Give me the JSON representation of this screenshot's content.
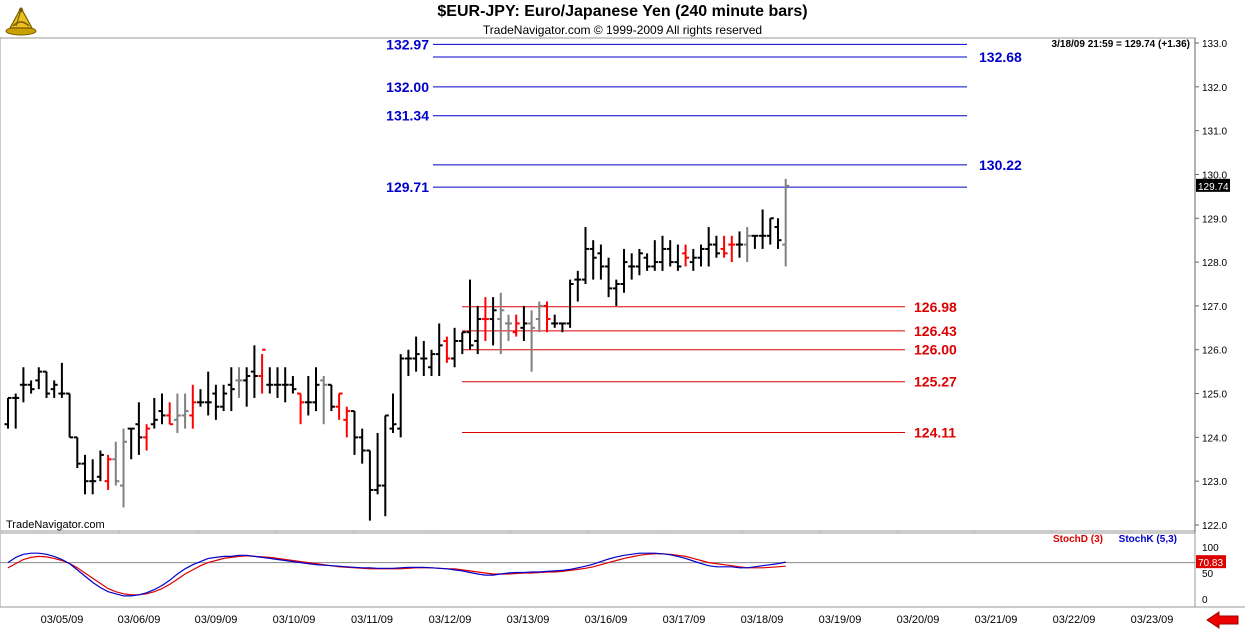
{
  "chart_title": "$EUR-JPY:  Euro/Japanese Yen  (240 minute bars)",
  "chart_subtitle": "TradeNavigator.com © 1999-2009 All rights reserved",
  "watermark": "TradeNavigator.com",
  "last_quote": "3/18/09 21:59 = 129.74 (+1.36)",
  "last_price_tag": "129.74",
  "stoch_last_tag": "70.83",
  "icons": {
    "logo": "sextant-logo-icon",
    "navigation": "red-left-arrow-icon"
  },
  "colors": {
    "up_bar": "#000000",
    "down_bar": "#ff0000",
    "gray_bar": "#808080",
    "resistance": "#0000cc",
    "support": "#dd0000",
    "stoch_d": "#dd0000",
    "stoch_k": "#0000cc"
  },
  "chart_data": [
    {
      "type": "ohlc",
      "title": "$EUR-JPY:  Euro/Japanese Yen  (240 minute bars)",
      "ylim": [
        122,
        133
      ],
      "y_ticks": [
        "133.0",
        "132.0",
        "131.0",
        "130.0",
        "129.0",
        "128.0",
        "127.0",
        "126.0",
        "125.0",
        "124.0",
        "123.0",
        "122.0"
      ],
      "x_ticks": [
        "03/05/09",
        "03/06/09",
        "03/09/09",
        "03/10/09",
        "03/11/09",
        "03/12/09",
        "03/13/09",
        "03/16/09",
        "03/17/09",
        "03/18/09",
        "03/19/09",
        "03/20/09",
        "03/21/09",
        "03/22/09",
        "03/23/09"
      ],
      "bars": [
        [
          124.3,
          124.9,
          124.2,
          124.9,
          "k"
        ],
        [
          124.9,
          125.0,
          124.2,
          124.9,
          "k"
        ],
        [
          125.2,
          125.6,
          124.8,
          125.2,
          "k"
        ],
        [
          125.2,
          125.3,
          125.0,
          125.1,
          "k"
        ],
        [
          125.3,
          125.6,
          125.1,
          125.5,
          "k"
        ],
        [
          125.5,
          125.5,
          124.9,
          125.0,
          "k"
        ],
        [
          125.1,
          125.3,
          124.9,
          125.2,
          "k"
        ],
        [
          125.0,
          125.7,
          124.9,
          125.0,
          "k"
        ],
        [
          125.0,
          125.0,
          124.0,
          124.0,
          "k"
        ],
        [
          124.0,
          124.0,
          123.3,
          123.4,
          "k"
        ],
        [
          123.4,
          123.6,
          122.7,
          123.0,
          "k"
        ],
        [
          123.0,
          123.5,
          122.7,
          123.0,
          "k"
        ],
        [
          123.1,
          123.7,
          123.0,
          123.6,
          "k"
        ],
        [
          123.0,
          123.6,
          122.8,
          123.5,
          "r"
        ],
        [
          123.5,
          123.9,
          122.9,
          123.0,
          "g"
        ],
        [
          122.9,
          124.2,
          122.4,
          123.9,
          "g"
        ],
        [
          124.2,
          124.2,
          123.5,
          124.2,
          "k"
        ],
        [
          124.3,
          124.8,
          123.6,
          124.0,
          "k"
        ],
        [
          124.0,
          124.3,
          123.7,
          124.2,
          "r"
        ],
        [
          124.3,
          124.9,
          124.2,
          124.4,
          "k"
        ],
        [
          124.6,
          125.0,
          124.3,
          124.5,
          "k"
        ],
        [
          124.5,
          124.8,
          124.3,
          124.3,
          "r"
        ],
        [
          124.4,
          125.0,
          124.1,
          124.5,
          "g"
        ],
        [
          124.5,
          125.0,
          124.2,
          124.6,
          "g"
        ],
        [
          124.5,
          125.2,
          124.2,
          124.8,
          "r"
        ],
        [
          124.8,
          125.1,
          124.7,
          124.8,
          "k"
        ],
        [
          124.8,
          125.5,
          124.5,
          124.8,
          "k"
        ],
        [
          125.0,
          125.2,
          124.4,
          124.7,
          "k"
        ],
        [
          124.7,
          125.2,
          124.6,
          125.0,
          "k"
        ],
        [
          125.2,
          125.6,
          124.6,
          125.1,
          "k"
        ],
        [
          125.3,
          125.6,
          124.9,
          125.3,
          "g"
        ],
        [
          125.3,
          125.6,
          124.7,
          125.4,
          "k"
        ],
        [
          125.5,
          126.1,
          124.9,
          125.4,
          "k"
        ],
        [
          125.4,
          125.9,
          125.0,
          126.0,
          "r"
        ],
        [
          125.2,
          125.6,
          125.0,
          125.2,
          "k"
        ],
        [
          125.2,
          125.6,
          124.9,
          125.2,
          "k"
        ],
        [
          125.2,
          125.6,
          124.8,
          125.2,
          "k"
        ],
        [
          125.2,
          125.4,
          125.0,
          125.1,
          "k"
        ],
        [
          125.0,
          125.0,
          124.3,
          124.8,
          "r"
        ],
        [
          124.8,
          125.4,
          124.5,
          124.8,
          "k"
        ],
        [
          124.8,
          125.6,
          124.6,
          125.2,
          "k"
        ],
        [
          125.3,
          125.4,
          124.3,
          125.2,
          "g"
        ],
        [
          125.2,
          125.2,
          124.6,
          124.7,
          "k"
        ],
        [
          124.7,
          125.0,
          124.4,
          125.0,
          "r"
        ],
        [
          124.4,
          124.7,
          124.0,
          124.6,
          "r"
        ],
        [
          124.6,
          124.6,
          123.6,
          124.0,
          "k"
        ],
        [
          124.0,
          124.2,
          123.4,
          123.7,
          "k"
        ],
        [
          123.7,
          123.7,
          122.1,
          122.8,
          "k"
        ],
        [
          122.8,
          124.1,
          122.7,
          122.9,
          "k"
        ],
        [
          122.9,
          124.5,
          122.2,
          124.5,
          "k"
        ],
        [
          124.2,
          125.0,
          124.1,
          124.3,
          "k"
        ],
        [
          124.2,
          125.9,
          124.0,
          125.8,
          "k"
        ],
        [
          125.8,
          126.0,
          125.4,
          125.8,
          "k"
        ],
        [
          125.8,
          126.3,
          125.5,
          125.9,
          "k"
        ],
        [
          125.8,
          126.2,
          125.4,
          125.8,
          "k"
        ],
        [
          125.6,
          126.0,
          125.4,
          125.9,
          "k"
        ],
        [
          125.9,
          126.6,
          125.4,
          126.1,
          "k"
        ],
        [
          126.2,
          126.3,
          125.7,
          125.8,
          "r"
        ],
        [
          125.8,
          126.5,
          125.6,
          126.2,
          "k"
        ],
        [
          126.2,
          126.4,
          125.9,
          126.4,
          "k"
        ],
        [
          126.4,
          127.6,
          126.0,
          126.1,
          "k"
        ],
        [
          126.2,
          127.0,
          125.9,
          126.7,
          "k"
        ],
        [
          126.7,
          127.2,
          126.2,
          126.7,
          "r"
        ],
        [
          126.7,
          127.2,
          126.1,
          126.9,
          "k"
        ],
        [
          126.7,
          127.3,
          125.9,
          126.9,
          "g"
        ],
        [
          126.6,
          126.8,
          126.2,
          126.6,
          "g"
        ],
        [
          126.4,
          126.8,
          126.3,
          126.6,
          "r"
        ],
        [
          126.5,
          127.0,
          126.2,
          126.6,
          "k"
        ],
        [
          126.6,
          126.9,
          125.5,
          126.5,
          "g"
        ],
        [
          126.7,
          127.1,
          126.4,
          127.0,
          "g"
        ],
        [
          127.0,
          127.1,
          126.4,
          126.7,
          "r"
        ],
        [
          126.6,
          126.8,
          126.5,
          126.6,
          "k"
        ],
        [
          126.6,
          126.6,
          126.4,
          126.6,
          "k"
        ],
        [
          126.6,
          127.6,
          126.5,
          127.5,
          "k"
        ],
        [
          127.6,
          127.8,
          127.1,
          127.6,
          "k"
        ],
        [
          127.6,
          128.8,
          127.5,
          128.3,
          "k"
        ],
        [
          128.3,
          128.5,
          127.6,
          128.1,
          "k"
        ],
        [
          128.2,
          128.4,
          127.6,
          127.9,
          "k"
        ],
        [
          127.9,
          128.1,
          127.2,
          127.4,
          "k"
        ],
        [
          127.4,
          127.6,
          127.0,
          127.5,
          "k"
        ],
        [
          127.5,
          128.3,
          127.3,
          128.0,
          "k"
        ],
        [
          127.9,
          128.2,
          127.6,
          127.9,
          "k"
        ],
        [
          127.9,
          128.3,
          127.7,
          128.2,
          "k"
        ],
        [
          128.1,
          128.2,
          127.8,
          127.9,
          "k"
        ],
        [
          127.9,
          128.5,
          127.8,
          128.0,
          "k"
        ],
        [
          128.0,
          128.6,
          127.8,
          128.3,
          "k"
        ],
        [
          128.3,
          128.5,
          127.9,
          128.0,
          "k"
        ],
        [
          128.0,
          128.4,
          127.8,
          127.9,
          "k"
        ],
        [
          128.2,
          128.4,
          127.9,
          128.1,
          "r"
        ],
        [
          128.0,
          128.3,
          127.8,
          128.1,
          "k"
        ],
        [
          128.1,
          128.4,
          127.9,
          128.3,
          "k"
        ],
        [
          128.3,
          128.8,
          127.9,
          128.4,
          "k"
        ],
        [
          128.4,
          128.6,
          128.1,
          128.2,
          "k"
        ],
        [
          128.3,
          128.6,
          128.1,
          128.2,
          "r"
        ],
        [
          128.4,
          128.6,
          128.0,
          128.4,
          "r"
        ],
        [
          128.4,
          128.7,
          128.1,
          128.4,
          "k"
        ],
        [
          128.4,
          128.8,
          128.0,
          128.6,
          "g"
        ],
        [
          128.6,
          128.6,
          128.3,
          128.6,
          "k"
        ],
        [
          128.6,
          129.2,
          128.3,
          128.6,
          "k"
        ],
        [
          128.6,
          129.0,
          128.4,
          129.0,
          "k"
        ],
        [
          128.8,
          129.0,
          128.3,
          128.5,
          "k"
        ],
        [
          128.4,
          129.9,
          127.9,
          129.74,
          "g"
        ]
      ],
      "resistance_levels": [
        {
          "value": 132.97,
          "label": "132.97"
        },
        {
          "value": 132.68,
          "label": "132.68"
        },
        {
          "value": 132.0,
          "label": "132.00"
        },
        {
          "value": 131.34,
          "label": "131.34"
        },
        {
          "value": 130.22,
          "label": "130.22"
        },
        {
          "value": 129.71,
          "label": "129.71"
        }
      ],
      "support_levels": [
        {
          "value": 126.98,
          "label": "126.98"
        },
        {
          "value": 126.43,
          "label": "126.43"
        },
        {
          "value": 126.0,
          "label": "126.00"
        },
        {
          "value": 125.27,
          "label": "125.27"
        },
        {
          "value": 124.11,
          "label": "124.11"
        }
      ]
    },
    {
      "type": "line",
      "ylim": [
        0,
        100
      ],
      "y_ticks": [
        "100",
        "50",
        "0"
      ],
      "legend": "top-right",
      "series": [
        {
          "name": "StochD (3)",
          "color": "#dd0000",
          "values": [
            60,
            68,
            76,
            80,
            82,
            81,
            78,
            74,
            68,
            60,
            50,
            40,
            30,
            20,
            14,
            10,
            8,
            8,
            10,
            14,
            20,
            28,
            38,
            48,
            56,
            64,
            70,
            74,
            78,
            80,
            82,
            83,
            82,
            81,
            80,
            78,
            76,
            74,
            72,
            70,
            68,
            66,
            64,
            62,
            61,
            60,
            59,
            58,
            58,
            58,
            58,
            58,
            59,
            60,
            60,
            60,
            59,
            58,
            58,
            56,
            54,
            52,
            50,
            48,
            48,
            48,
            49,
            50,
            50,
            51,
            52,
            52,
            53,
            55,
            57,
            59,
            62,
            66,
            70,
            74,
            78,
            81,
            84,
            86,
            87,
            87,
            86,
            84,
            82,
            78,
            74,
            70,
            68,
            66,
            64,
            62,
            60,
            60,
            60,
            61,
            62,
            63
          ]
        },
        {
          "name": "StochK (5,3)",
          "color": "#0000cc",
          "values": [
            70,
            80,
            86,
            88,
            88,
            86,
            82,
            76,
            68,
            56,
            44,
            32,
            22,
            14,
            10,
            6,
            6,
            8,
            12,
            18,
            26,
            36,
            48,
            58,
            66,
            72,
            78,
            80,
            82,
            82,
            84,
            84,
            82,
            80,
            78,
            76,
            74,
            72,
            70,
            68,
            66,
            65,
            64,
            63,
            62,
            61,
            60,
            60,
            59,
            59,
            59,
            60,
            61,
            61,
            61,
            60,
            59,
            58,
            56,
            54,
            51,
            48,
            46,
            46,
            48,
            50,
            51,
            51,
            52,
            52,
            53,
            54,
            55,
            57,
            60,
            63,
            67,
            72,
            77,
            81,
            84,
            86,
            88,
            88,
            88,
            87,
            85,
            82,
            78,
            73,
            68,
            64,
            62,
            62,
            62,
            60,
            60,
            62,
            64,
            66,
            68,
            71
          ]
        }
      ]
    }
  ]
}
